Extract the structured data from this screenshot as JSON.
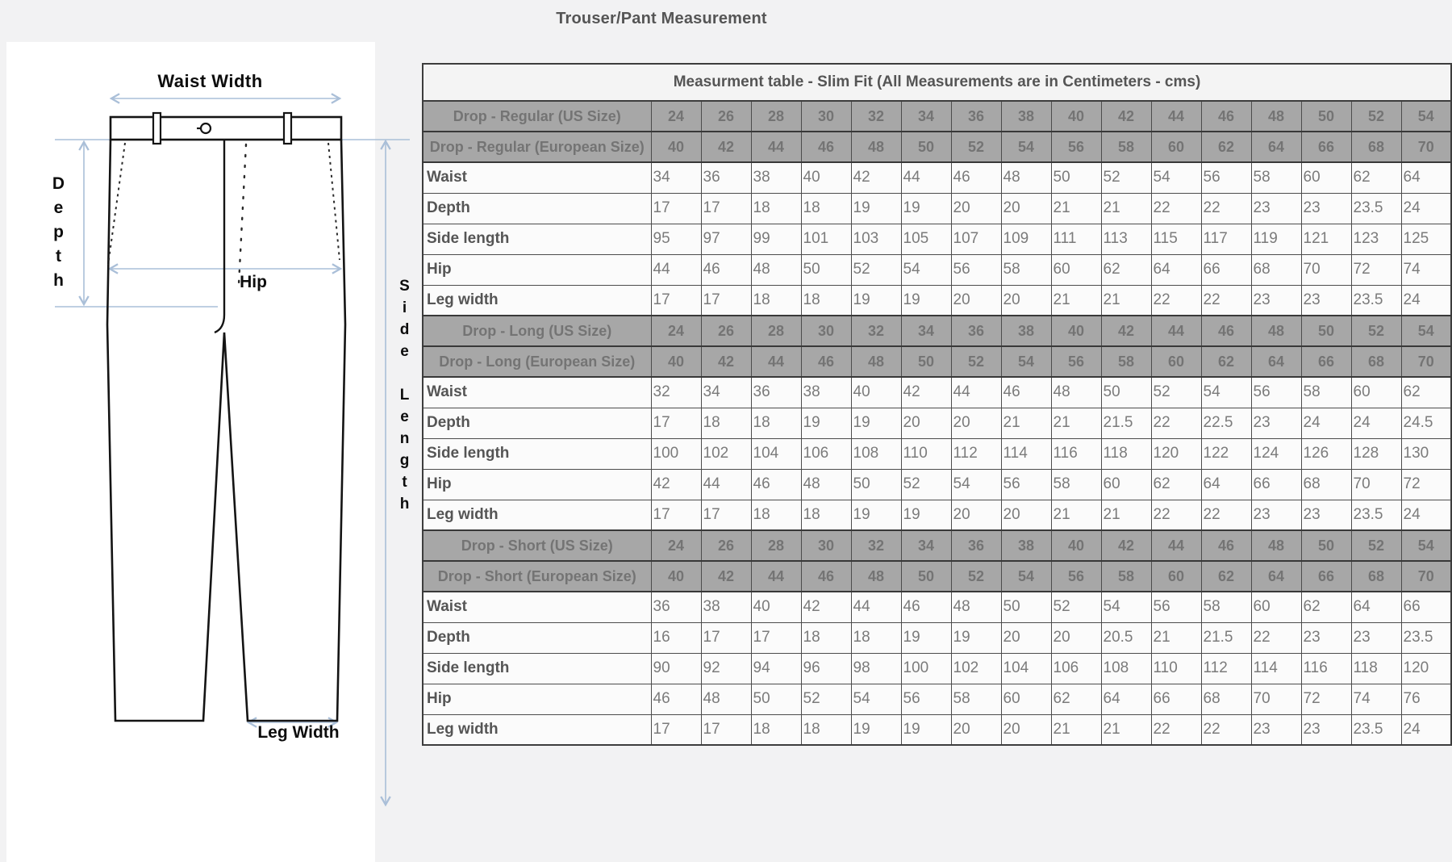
{
  "page": {
    "title": "Trouser/Pant Measurement"
  },
  "diagram": {
    "labels": {
      "waist_width": "Waist Width",
      "depth": "Depth",
      "hip": "Hip",
      "side_length": "Side Length",
      "leg_width": "Leg Width"
    }
  },
  "table": {
    "title": "Measurment table - Slim Fit (All Measurements are in Centimeters - cms)",
    "sections": [
      {
        "us_label": "Drop - Regular (US Size)",
        "us_sizes": [
          24,
          26,
          28,
          30,
          32,
          34,
          36,
          38,
          40,
          42,
          44,
          46,
          48,
          50,
          52,
          54
        ],
        "eu_label": "Drop - Regular (European Size)",
        "eu_sizes": [
          40,
          42,
          44,
          46,
          48,
          50,
          52,
          54,
          56,
          58,
          60,
          62,
          64,
          66,
          68,
          70
        ],
        "rows": [
          {
            "label": "Waist",
            "values": [
              34,
              36,
              38,
              40,
              42,
              44,
              46,
              48,
              50,
              52,
              54,
              56,
              58,
              60,
              62,
              64
            ]
          },
          {
            "label": "Depth",
            "values": [
              17,
              17,
              18,
              18,
              19,
              19,
              20,
              20,
              21,
              21,
              22,
              22,
              23,
              23,
              23.5,
              24
            ]
          },
          {
            "label": "Side length",
            "values": [
              95,
              97,
              99,
              101,
              103,
              105,
              107,
              109,
              111,
              113,
              115,
              117,
              119,
              121,
              123,
              125
            ]
          },
          {
            "label": "Hip",
            "values": [
              44,
              46,
              48,
              50,
              52,
              54,
              56,
              58,
              60,
              62,
              64,
              66,
              68,
              70,
              72,
              74
            ]
          },
          {
            "label": "Leg width",
            "values": [
              17,
              17,
              18,
              18,
              19,
              19,
              20,
              20,
              21,
              21,
              22,
              22,
              23,
              23,
              23.5,
              24
            ]
          }
        ]
      },
      {
        "us_label": "Drop - Long (US Size)",
        "us_sizes": [
          24,
          26,
          28,
          30,
          32,
          34,
          36,
          38,
          40,
          42,
          44,
          46,
          48,
          50,
          52,
          54
        ],
        "eu_label": "Drop - Long (European Size)",
        "eu_sizes": [
          40,
          42,
          44,
          46,
          48,
          50,
          52,
          54,
          56,
          58,
          60,
          62,
          64,
          66,
          68,
          70
        ],
        "rows": [
          {
            "label": "Waist",
            "values": [
              32,
              34,
              36,
              38,
              40,
              42,
              44,
              46,
              48,
              50,
              52,
              54,
              56,
              58,
              60,
              62
            ]
          },
          {
            "label": "Depth",
            "values": [
              17,
              18,
              18,
              19,
              19,
              20,
              20,
              21,
              21,
              21.5,
              22,
              22.5,
              23,
              24,
              24,
              24.5
            ]
          },
          {
            "label": "Side length",
            "values": [
              100,
              102,
              104,
              106,
              108,
              110,
              112,
              114,
              116,
              118,
              120,
              122,
              124,
              126,
              128,
              130
            ]
          },
          {
            "label": "Hip",
            "values": [
              42,
              44,
              46,
              48,
              50,
              52,
              54,
              56,
              58,
              60,
              62,
              64,
              66,
              68,
              70,
              72
            ]
          },
          {
            "label": "Leg width",
            "values": [
              17,
              17,
              18,
              18,
              19,
              19,
              20,
              20,
              21,
              21,
              22,
              22,
              23,
              23,
              23.5,
              24
            ]
          }
        ]
      },
      {
        "us_label": "Drop - Short (US Size)",
        "us_sizes": [
          24,
          26,
          28,
          30,
          32,
          34,
          36,
          38,
          40,
          42,
          44,
          46,
          48,
          50,
          52,
          54
        ],
        "eu_label": "Drop - Short (European Size)",
        "eu_sizes": [
          40,
          42,
          44,
          46,
          48,
          50,
          52,
          54,
          56,
          58,
          60,
          62,
          64,
          66,
          68,
          70
        ],
        "rows": [
          {
            "label": "Waist",
            "values": [
              36,
              38,
              40,
              42,
              44,
              46,
              48,
              50,
              52,
              54,
              56,
              58,
              60,
              62,
              64,
              66
            ]
          },
          {
            "label": "Depth",
            "values": [
              16,
              17,
              17,
              18,
              18,
              19,
              19,
              20,
              20,
              20.5,
              21,
              21.5,
              22,
              23,
              23,
              23.5
            ]
          },
          {
            "label": "Side length",
            "values": [
              90,
              92,
              94,
              96,
              98,
              100,
              102,
              104,
              106,
              108,
              110,
              112,
              114,
              116,
              118,
              120
            ]
          },
          {
            "label": "Hip",
            "values": [
              46,
              48,
              50,
              52,
              54,
              56,
              58,
              60,
              62,
              64,
              66,
              68,
              70,
              72,
              74,
              76
            ]
          },
          {
            "label": "Leg width",
            "values": [
              17,
              17,
              18,
              18,
              19,
              19,
              20,
              20,
              21,
              21,
              22,
              22,
              23,
              23,
              23.5,
              24
            ]
          }
        ]
      }
    ]
  },
  "colors": {
    "page_bg": "#f2f2f3",
    "panel_bg": "#ffffff",
    "section_row_bg": "#a7a7a7",
    "section_row_text": "#747474",
    "table_border": "#3d3d3d",
    "label_text": "#555555",
    "value_text": "#7b7b7b",
    "arrow_blue": "#aabfd8",
    "diagram_line": "#111111"
  }
}
